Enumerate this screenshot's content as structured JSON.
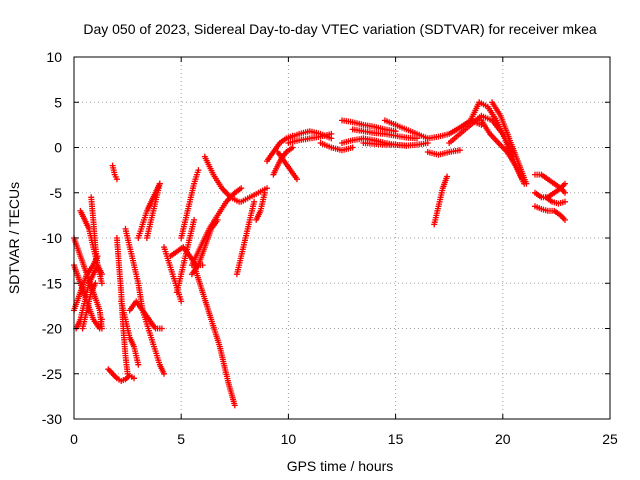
{
  "chart_data": {
    "type": "scatter",
    "title": "Day 050 of 2023, Sidereal Day-to-day VTEC variation (SDTVAR) for receiver mkea",
    "xlabel": "GPS time / hours",
    "ylabel": "SDTVAR / TECUs",
    "xlim": [
      0,
      25
    ],
    "ylim": [
      -30,
      10
    ],
    "xticks": [
      "0",
      "5",
      "10",
      "15",
      "20",
      "25"
    ],
    "yticks": [
      "10",
      "5",
      "0",
      "-5",
      "-10",
      "-15",
      "-20",
      "-25",
      "-30"
    ],
    "grid": true,
    "marker": "+",
    "color": "#ff0000",
    "tracks": [
      {
        "name": "track-01",
        "x": [
          0.0,
          0.3,
          0.6,
          0.9,
          1.2,
          1.3
        ],
        "y": [
          -10,
          -12,
          -14,
          -16,
          -18,
          -20
        ]
      },
      {
        "name": "track-02",
        "x": [
          0.0,
          0.3,
          0.6,
          0.9,
          1.2,
          1.3
        ],
        "y": [
          -13,
          -15,
          -17,
          -19,
          -20,
          -19
        ]
      },
      {
        "name": "track-03",
        "x": [
          0.0,
          0.3,
          0.6,
          0.9,
          1.1
        ],
        "y": [
          -18,
          -16,
          -14,
          -13,
          -12
        ]
      },
      {
        "name": "track-04",
        "x": [
          0.1,
          0.3,
          0.5,
          0.7,
          0.9,
          1.1,
          1.3
        ],
        "y": [
          -20,
          -19,
          -17,
          -15,
          -14,
          -13,
          -14
        ]
      },
      {
        "name": "track-05",
        "x": [
          0.3,
          0.5,
          0.7,
          0.9,
          1.1,
          1.3
        ],
        "y": [
          -7,
          -8,
          -9,
          -11,
          -13,
          -15
        ]
      },
      {
        "name": "track-06",
        "x": [
          0.8,
          0.9,
          1.0,
          1.1
        ],
        "y": [
          -5.5,
          -8,
          -11,
          -13
        ]
      },
      {
        "name": "track-07",
        "x": [
          0.4,
          0.6,
          0.8,
          1.0
        ],
        "y": [
          -20,
          -18,
          -16,
          -15
        ]
      },
      {
        "name": "track-08",
        "x": [
          1.8,
          1.9,
          2.0
        ],
        "y": [
          -2,
          -3,
          -3.5
        ]
      },
      {
        "name": "track-09",
        "x": [
          1.6,
          1.8,
          2.0,
          2.2,
          2.4,
          2.6,
          2.8
        ],
        "y": [
          -24.5,
          -25,
          -25.5,
          -25.8,
          -25.6,
          -25.2,
          -25.5
        ]
      },
      {
        "name": "track-10",
        "x": [
          2.0,
          2.1,
          2.2,
          2.3,
          2.4,
          2.5
        ],
        "y": [
          -10,
          -13,
          -16,
          -20,
          -23,
          -25
        ]
      },
      {
        "name": "track-11",
        "x": [
          2.2,
          2.4,
          2.6,
          2.8,
          3.0
        ],
        "y": [
          -17,
          -19,
          -21,
          -22,
          -24
        ]
      },
      {
        "name": "track-12",
        "x": [
          2.4,
          2.6,
          2.8,
          3.0,
          3.2
        ],
        "y": [
          -9,
          -11,
          -13,
          -15,
          -18
        ]
      },
      {
        "name": "track-13",
        "x": [
          2.6,
          2.9,
          3.2,
          3.5,
          3.8,
          4.1
        ],
        "y": [
          -18,
          -17,
          -18,
          -19,
          -20,
          -20
        ]
      },
      {
        "name": "track-14",
        "x": [
          3.0,
          3.2,
          3.4,
          3.6,
          3.8,
          4.0
        ],
        "y": [
          -10,
          -8.5,
          -7,
          -6,
          -5,
          -4
        ]
      },
      {
        "name": "track-15",
        "x": [
          3.2,
          3.4,
          3.6,
          3.8,
          4.0,
          4.2
        ],
        "y": [
          -18,
          -19.5,
          -21,
          -22.5,
          -24,
          -25
        ]
      },
      {
        "name": "track-16",
        "x": [
          3.4,
          3.6,
          3.8,
          4.0
        ],
        "y": [
          -10,
          -8,
          -6,
          -4
        ]
      },
      {
        "name": "track-17",
        "x": [
          4.2,
          4.4,
          4.6,
          4.8,
          5.0
        ],
        "y": [
          -11,
          -12.5,
          -14,
          -15.5,
          -17
        ]
      },
      {
        "name": "track-18",
        "x": [
          4.5,
          4.8,
          5.1,
          5.4,
          5.7,
          6.0
        ],
        "y": [
          -12,
          -11.5,
          -11,
          -12,
          -13,
          -13
        ]
      },
      {
        "name": "track-19",
        "x": [
          4.8,
          5.0,
          5.2,
          5.4,
          5.6
        ],
        "y": [
          -16,
          -14,
          -12,
          -10,
          -8
        ]
      },
      {
        "name": "track-20",
        "x": [
          5.0,
          5.2,
          5.4,
          5.6,
          5.8
        ],
        "y": [
          -10,
          -8,
          -6,
          -4,
          -2.5
        ]
      },
      {
        "name": "track-21",
        "x": [
          5.5,
          5.8,
          6.1,
          6.4,
          6.7
        ],
        "y": [
          -14,
          -13,
          -11,
          -9,
          -8
        ]
      },
      {
        "name": "track-22",
        "x": [
          5.6,
          6.0,
          6.4,
          6.8,
          7.2,
          7.5
        ],
        "y": [
          -13,
          -16,
          -19,
          -22,
          -26,
          -28.5
        ]
      },
      {
        "name": "track-23",
        "x": [
          5.5,
          5.9,
          6.3,
          6.7,
          7.1,
          7.5,
          7.8
        ],
        "y": [
          -13,
          -11,
          -9,
          -7.5,
          -6,
          -5,
          -4.5
        ]
      },
      {
        "name": "track-24",
        "x": [
          6.1,
          6.5,
          6.9,
          7.3,
          7.7
        ],
        "y": [
          -1,
          -3,
          -4.5,
          -5.5,
          -6
        ]
      },
      {
        "name": "track-25",
        "x": [
          7.6,
          7.8,
          8.0,
          8.2,
          8.4
        ],
        "y": [
          -14,
          -12,
          -10,
          -8,
          -6
        ]
      },
      {
        "name": "track-26",
        "x": [
          7.8,
          8.2,
          8.6,
          9.0
        ],
        "y": [
          -6,
          -5.5,
          -5,
          -4.5
        ]
      },
      {
        "name": "track-27",
        "x": [
          8.5,
          8.7,
          8.9
        ],
        "y": [
          -8,
          -7,
          -5
        ]
      },
      {
        "name": "track-28",
        "x": [
          9.0,
          9.3,
          9.6,
          9.9,
          10.2
        ],
        "y": [
          -1.5,
          -0.5,
          0.5,
          1.0,
          1.3
        ]
      },
      {
        "name": "track-29",
        "x": [
          9.3,
          9.6,
          9.9,
          10.2
        ],
        "y": [
          -3,
          -1.5,
          -0.5,
          0
        ]
      },
      {
        "name": "track-30",
        "x": [
          9.5,
          9.8,
          10.1,
          10.4
        ],
        "y": [
          -0.5,
          -1.5,
          -2.5,
          -3.5
        ]
      },
      {
        "name": "track-31",
        "x": [
          10.0,
          10.5,
          11.0,
          11.5,
          12.0
        ],
        "y": [
          1.0,
          1.5,
          1.8,
          1.5,
          1.0
        ]
      },
      {
        "name": "track-32",
        "x": [
          10.0,
          10.5,
          11.0,
          11.5,
          12.0
        ],
        "y": [
          0.5,
          0.8,
          1.0,
          1.2,
          1.5
        ]
      },
      {
        "name": "track-33",
        "x": [
          11.5,
          12.0,
          12.5,
          13.0
        ],
        "y": [
          0.5,
          0.0,
          -0.3,
          0.0
        ]
      },
      {
        "name": "track-34",
        "x": [
          12.5,
          13.0,
          13.5,
          14.0,
          14.5,
          15.0
        ],
        "y": [
          3.0,
          2.8,
          2.5,
          2.3,
          2.0,
          1.8
        ]
      },
      {
        "name": "track-35",
        "x": [
          12.5,
          13.0,
          13.5,
          14.0,
          14.5,
          15.0,
          15.5
        ],
        "y": [
          0.5,
          0.8,
          1.0,
          0.8,
          0.5,
          0.3,
          0.2
        ]
      },
      {
        "name": "track-36",
        "x": [
          13.0,
          13.5,
          14.0,
          14.5,
          15.0,
          15.5,
          16.0
        ],
        "y": [
          2.0,
          1.8,
          1.6,
          1.5,
          1.3,
          1.1,
          1.0
        ]
      },
      {
        "name": "track-37",
        "x": [
          13.5,
          14.0,
          14.5,
          15.0,
          15.5,
          16.0,
          16.5
        ],
        "y": [
          0.5,
          0.4,
          0.3,
          0.3,
          0.2,
          0.3,
          0.5
        ]
      },
      {
        "name": "track-38",
        "x": [
          14.5,
          15.0,
          15.5,
          16.0,
          16.5
        ],
        "y": [
          3.0,
          2.5,
          2.0,
          1.5,
          1.0
        ]
      },
      {
        "name": "track-39",
        "x": [
          16.5,
          17.0,
          17.5,
          18.0
        ],
        "y": [
          -0.5,
          -0.8,
          -0.5,
          -0.3
        ]
      },
      {
        "name": "track-40",
        "x": [
          16.5,
          17.0,
          17.5,
          18.0,
          18.5,
          19.0
        ],
        "y": [
          1.0,
          1.2,
          1.5,
          2.2,
          3.0,
          2.5
        ]
      },
      {
        "name": "track-41",
        "x": [
          17.5,
          18.0,
          18.5,
          19.0,
          19.5,
          20.0,
          20.5
        ],
        "y": [
          0.5,
          1.5,
          2.5,
          3.5,
          3.0,
          1.5,
          -1.0
        ]
      },
      {
        "name": "track-42",
        "x": [
          16.8,
          17.0,
          17.2,
          17.4
        ],
        "y": [
          -8.5,
          -6.5,
          -4.5,
          -3.2
        ]
      },
      {
        "name": "track-43",
        "x": [
          18.5,
          18.9,
          19.3,
          19.7,
          20.1,
          20.5,
          20.9
        ],
        "y": [
          3.0,
          5.0,
          4.5,
          3.0,
          1.0,
          -1.5,
          -3.5
        ]
      },
      {
        "name": "track-44",
        "x": [
          19.0,
          19.4,
          19.8,
          20.2,
          20.6,
          21.0
        ],
        "y": [
          3.0,
          1.5,
          0.5,
          -0.5,
          -2.0,
          -4.0
        ]
      },
      {
        "name": "track-45",
        "x": [
          19.5,
          19.9,
          20.3,
          20.7,
          21.1
        ],
        "y": [
          5.0,
          3.5,
          1.0,
          -1.5,
          -4.0
        ]
      },
      {
        "name": "track-46",
        "x": [
          21.5,
          21.8,
          22.1,
          22.4,
          22.7,
          22.9
        ],
        "y": [
          -3.0,
          -3.0,
          -3.5,
          -4.0,
          -4.5,
          -5.0
        ]
      },
      {
        "name": "track-47",
        "x": [
          21.5,
          21.8,
          22.1,
          22.4,
          22.7,
          22.9
        ],
        "y": [
          -5.0,
          -5.5,
          -5.5,
          -5.0,
          -4.5,
          -4.0
        ]
      },
      {
        "name": "track-48",
        "x": [
          21.5,
          21.8,
          22.1,
          22.4,
          22.7,
          22.9
        ],
        "y": [
          -6.5,
          -6.8,
          -7.0,
          -7.0,
          -7.5,
          -8.0
        ]
      },
      {
        "name": "track-49",
        "x": [
          22.0,
          22.3,
          22.6,
          22.9
        ],
        "y": [
          -5.5,
          -6.0,
          -6.2,
          -6.0
        ]
      }
    ]
  }
}
